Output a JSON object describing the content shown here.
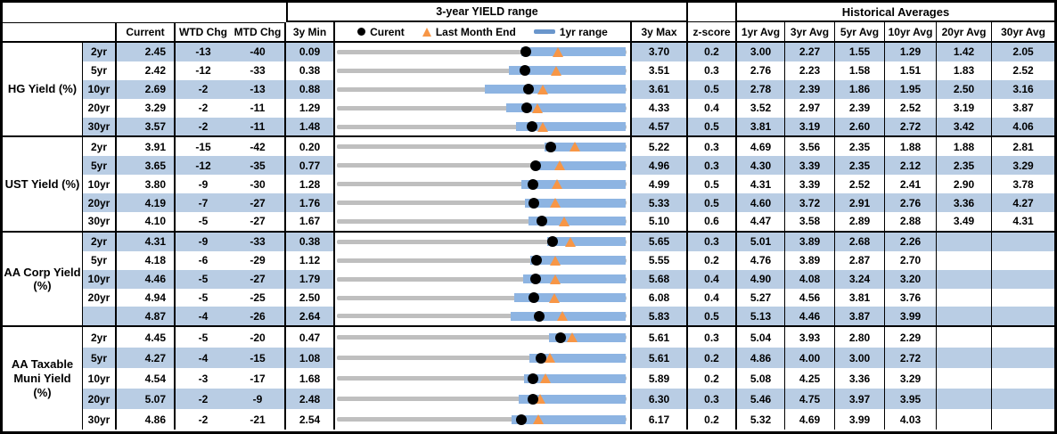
{
  "header": {
    "range_title": "3-year YIELD range",
    "historical_title": "Historical Averages",
    "col_current": "Current",
    "col_wtd": "WTD Chg",
    "col_mtd": "MTD Chg",
    "col_min": "3y Min",
    "col_max": "3y Max",
    "col_zscore": "z-score",
    "avg_cols": [
      "1yr Avg",
      "3yr Avg",
      "5yr Avg",
      "10yr Avg",
      "20yr Avg",
      "30yr Avg"
    ],
    "legend": {
      "current": "Curent",
      "last_month": "Last Month End",
      "range": "1yr range"
    }
  },
  "colors": {
    "stripe_blue": "#B9CDE4",
    "range_bar_blue": "#8DB4E2",
    "legend_dash_blue": "#6A96CC",
    "track_gray": "#BFBFBF",
    "marker_orange": "#F79646",
    "current_dot_black": "#000000"
  },
  "chart_data": {
    "type": "table",
    "description": "Yield table with embedded 3-year range strip charts; black dot = current, orange triangle = last month end, blue bar = 1yr range within gray 3y min-max track",
    "sections": [
      {
        "label_lines": [
          "HG Yield (%)"
        ],
        "rows": [
          {
            "tenor": "2yr",
            "current": "2.45",
            "wtd": "-13",
            "mtd": "-40",
            "min3y": "0.09",
            "max3y": "3.70",
            "zscore": "0.2",
            "avgs": [
              "3.00",
              "2.27",
              "1.55",
              "1.29",
              "1.42",
              "2.05"
            ],
            "last_month_end": 2.85,
            "yr1_low": 2.39,
            "yr1_high": 3.7
          },
          {
            "tenor": "5yr",
            "current": "2.42",
            "wtd": "-12",
            "mtd": "-33",
            "min3y": "0.38",
            "max3y": "3.51",
            "zscore": "0.3",
            "avgs": [
              "2.76",
              "2.23",
              "1.58",
              "1.51",
              "1.83",
              "2.52"
            ],
            "last_month_end": 2.75,
            "yr1_low": 2.24,
            "yr1_high": 3.51
          },
          {
            "tenor": "10yr",
            "current": "2.69",
            "wtd": "-2",
            "mtd": "-13",
            "min3y": "0.88",
            "max3y": "3.61",
            "zscore": "0.5",
            "avgs": [
              "2.78",
              "2.39",
              "1.86",
              "1.95",
              "2.50",
              "3.16"
            ],
            "last_month_end": 2.82,
            "yr1_low": 2.28,
            "yr1_high": 3.61
          },
          {
            "tenor": "20yr",
            "current": "3.29",
            "wtd": "-2",
            "mtd": "-11",
            "min3y": "1.29",
            "max3y": "4.33",
            "zscore": "0.4",
            "avgs": [
              "3.52",
              "2.97",
              "2.39",
              "2.52",
              "3.19",
              "3.87"
            ],
            "last_month_end": 3.4,
            "yr1_low": 3.07,
            "yr1_high": 4.33
          },
          {
            "tenor": "30yr",
            "current": "3.57",
            "wtd": "-2",
            "mtd": "-11",
            "min3y": "1.48",
            "max3y": "4.57",
            "zscore": "0.5",
            "avgs": [
              "3.81",
              "3.19",
              "2.60",
              "2.72",
              "3.42",
              "4.06"
            ],
            "last_month_end": 3.68,
            "yr1_low": 3.39,
            "yr1_high": 4.57
          }
        ]
      },
      {
        "label_lines": [
          "UST Yield (%)"
        ],
        "rows": [
          {
            "tenor": "2yr",
            "current": "3.91",
            "wtd": "-15",
            "mtd": "-42",
            "min3y": "0.20",
            "max3y": "5.22",
            "zscore": "0.3",
            "avgs": [
              "4.69",
              "3.56",
              "2.35",
              "1.88",
              "1.88",
              "2.81"
            ],
            "last_month_end": 4.33,
            "yr1_low": 3.8,
            "yr1_high": 5.22
          },
          {
            "tenor": "5yr",
            "current": "3.65",
            "wtd": "-12",
            "mtd": "-35",
            "min3y": "0.77",
            "max3y": "4.96",
            "zscore": "0.3",
            "avgs": [
              "4.30",
              "3.39",
              "2.35",
              "2.12",
              "2.35",
              "3.29"
            ],
            "last_month_end": 4.0,
            "yr1_low": 3.61,
            "yr1_high": 4.96
          },
          {
            "tenor": "10yr",
            "current": "3.80",
            "wtd": "-9",
            "mtd": "-30",
            "min3y": "1.28",
            "max3y": "4.99",
            "zscore": "0.5",
            "avgs": [
              "4.31",
              "3.39",
              "2.52",
              "2.41",
              "2.90",
              "3.78"
            ],
            "last_month_end": 4.1,
            "yr1_low": 3.65,
            "yr1_high": 4.99
          },
          {
            "tenor": "20yr",
            "current": "4.19",
            "wtd": "-7",
            "mtd": "-27",
            "min3y": "1.76",
            "max3y": "5.33",
            "zscore": "0.5",
            "avgs": [
              "4.60",
              "3.72",
              "2.91",
              "2.76",
              "3.36",
              "4.27"
            ],
            "last_month_end": 4.46,
            "yr1_low": 4.08,
            "yr1_high": 5.33
          },
          {
            "tenor": "30yr",
            "current": "4.10",
            "wtd": "-5",
            "mtd": "-27",
            "min3y": "1.67",
            "max3y": "5.10",
            "zscore": "0.6",
            "avgs": [
              "4.47",
              "3.58",
              "2.89",
              "2.88",
              "3.49",
              "4.31"
            ],
            "last_month_end": 4.37,
            "yr1_low": 3.94,
            "yr1_high": 5.1
          }
        ]
      },
      {
        "label_lines": [
          "AA Corp Yield",
          "(%)"
        ],
        "rows": [
          {
            "tenor": "2yr",
            "current": "4.31",
            "wtd": "-9",
            "mtd": "-33",
            "min3y": "0.38",
            "max3y": "5.65",
            "zscore": "0.3",
            "avgs": [
              "5.01",
              "3.89",
              "2.68",
              "2.26",
              "",
              ""
            ],
            "last_month_end": 4.64,
            "yr1_low": 4.22,
            "yr1_high": 5.65
          },
          {
            "tenor": "5yr",
            "current": "4.18",
            "wtd": "-6",
            "mtd": "-29",
            "min3y": "1.12",
            "max3y": "5.55",
            "zscore": "0.2",
            "avgs": [
              "4.76",
              "3.89",
              "2.87",
              "2.70",
              "",
              ""
            ],
            "last_month_end": 4.47,
            "yr1_low": 4.08,
            "yr1_high": 5.55
          },
          {
            "tenor": "10yr",
            "current": "4.46",
            "wtd": "-5",
            "mtd": "-27",
            "min3y": "1.79",
            "max3y": "5.68",
            "zscore": "0.4",
            "avgs": [
              "4.90",
              "4.08",
              "3.24",
              "3.20",
              "",
              ""
            ],
            "last_month_end": 4.73,
            "yr1_low": 4.3,
            "yr1_high": 5.68
          },
          {
            "tenor": "20yr",
            "current": "4.94",
            "wtd": "-5",
            "mtd": "-25",
            "min3y": "2.50",
            "max3y": "6.08",
            "zscore": "0.4",
            "avgs": [
              "5.27",
              "4.56",
              "3.81",
              "3.76",
              "",
              ""
            ],
            "last_month_end": 5.19,
            "yr1_low": 4.69,
            "yr1_high": 6.08
          },
          {
            "tenor": "",
            "current": "4.87",
            "wtd": "-4",
            "mtd": "-26",
            "min3y": "2.64",
            "max3y": "5.83",
            "zscore": "0.5",
            "avgs": [
              "5.13",
              "4.46",
              "3.87",
              "3.99",
              "",
              ""
            ],
            "last_month_end": 5.13,
            "yr1_low": 4.56,
            "yr1_high": 5.83
          }
        ]
      },
      {
        "label_lines": [
          "AA Taxable",
          "Muni Yield",
          "(%)"
        ],
        "rows": [
          {
            "tenor": "2yr",
            "current": "4.45",
            "wtd": "-5",
            "mtd": "-20",
            "min3y": "0.47",
            "max3y": "5.61",
            "zscore": "0.3",
            "avgs": [
              "5.04",
              "3.93",
              "2.80",
              "2.29",
              "",
              ""
            ],
            "last_month_end": 4.65,
            "yr1_low": 4.24,
            "yr1_high": 5.61
          },
          {
            "tenor": "5yr",
            "current": "4.27",
            "wtd": "-4",
            "mtd": "-15",
            "min3y": "1.08",
            "max3y": "5.61",
            "zscore": "0.2",
            "avgs": [
              "4.86",
              "4.00",
              "3.00",
              "2.72",
              "",
              ""
            ],
            "last_month_end": 4.42,
            "yr1_low": 4.09,
            "yr1_high": 5.61
          },
          {
            "tenor": "10yr",
            "current": "4.54",
            "wtd": "-3",
            "mtd": "-17",
            "min3y": "1.68",
            "max3y": "5.89",
            "zscore": "0.2",
            "avgs": [
              "5.08",
              "4.25",
              "3.36",
              "3.29",
              "",
              ""
            ],
            "last_month_end": 4.71,
            "yr1_low": 4.4,
            "yr1_high": 5.89
          },
          {
            "tenor": "20yr",
            "current": "5.07",
            "wtd": "-2",
            "mtd": "-9",
            "min3y": "2.48",
            "max3y": "6.30",
            "zscore": "0.3",
            "avgs": [
              "5.46",
              "4.75",
              "3.97",
              "3.95",
              "",
              ""
            ],
            "last_month_end": 5.16,
            "yr1_low": 4.88,
            "yr1_high": 6.3
          },
          {
            "tenor": "30yr",
            "current": "4.86",
            "wtd": "-2",
            "mtd": "-21",
            "min3y": "2.54",
            "max3y": "6.17",
            "zscore": "0.2",
            "avgs": [
              "5.32",
              "4.69",
              "3.99",
              "4.03",
              "",
              ""
            ],
            "last_month_end": 5.07,
            "yr1_low": 4.73,
            "yr1_high": 6.17
          }
        ]
      }
    ]
  }
}
